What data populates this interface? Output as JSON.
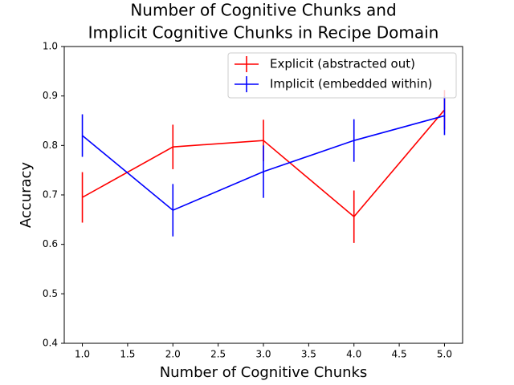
{
  "chart_data": {
    "type": "errorbar-line",
    "title": [
      "Number of Cognitive Chunks and",
      "Implicit Cognitive Chunks in Recipe Domain"
    ],
    "xlabel": "Number of Cognitive Chunks",
    "ylabel": "Accuracy",
    "x": [
      1,
      2,
      3,
      4,
      5
    ],
    "series": [
      {
        "name": "Explicit (abstracted out)",
        "color": "#ff0000",
        "values": [
          0.695,
          0.797,
          0.81,
          0.656,
          0.872
        ],
        "errors": [
          0.051,
          0.045,
          0.042,
          0.053,
          0.04
        ]
      },
      {
        "name": "Implicit (embedded within)",
        "color": "#0000ff",
        "values": [
          0.82,
          0.669,
          0.747,
          0.81,
          0.86
        ],
        "errors": [
          0.043,
          0.053,
          0.053,
          0.043,
          0.039
        ]
      }
    ],
    "xlim": [
      0.8,
      5.2
    ],
    "xticks": [
      {
        "value": 1,
        "label": "1.0"
      },
      1.5,
      {
        "value": 2,
        "label": "2.0"
      },
      2.5,
      {
        "value": 3,
        "label": "3.0"
      },
      3.5,
      {
        "value": 4,
        "label": "4.0"
      },
      4.5,
      {
        "value": 5,
        "label": "5.0"
      }
    ],
    "ylim": [
      0.4,
      1.0
    ],
    "yticks": [
      0.4,
      0.5,
      0.6,
      0.7,
      0.8,
      0.9,
      {
        "value": 1,
        "label": "1.0"
      }
    ],
    "legend": "upper right",
    "grid": false
  }
}
